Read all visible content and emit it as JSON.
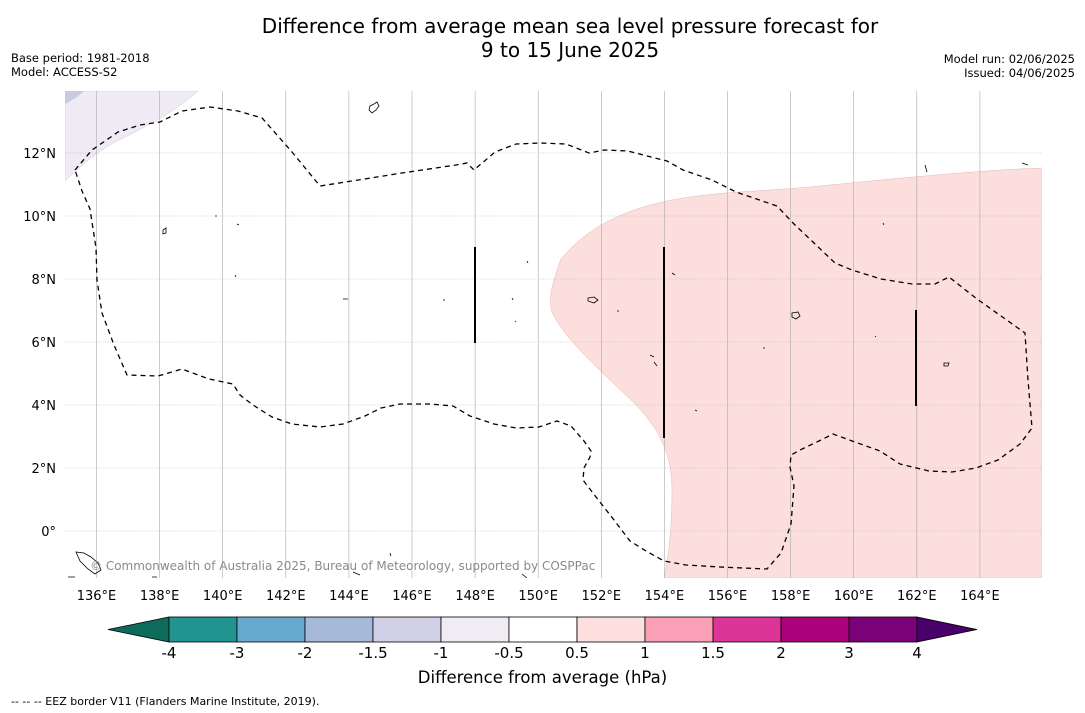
{
  "header": {
    "title_line1": "Difference from average mean sea level pressure forecast for",
    "title_line2": "9 to 15 June 2025",
    "base_period": "Base period: 1981-2018",
    "model": "Model: ACCESS-S2",
    "model_run": "Model run: 02/06/2025",
    "issued": "Issued: 04/06/2025"
  },
  "map": {
    "lon_ticks": [
      "136°E",
      "138°E",
      "140°E",
      "142°E",
      "144°E",
      "146°E",
      "148°E",
      "150°E",
      "152°E",
      "154°E",
      "156°E",
      "158°E",
      "160°E",
      "162°E",
      "164°E"
    ],
    "lat_ticks": [
      "12°N",
      "10°N",
      "8°N",
      "6°N",
      "4°N",
      "2°N",
      "0°"
    ],
    "copyright": "© Commonwealth of Australia 2025, Bureau of Meteorology, supported by COSPPac",
    "positive_region_color": "#fcdedd",
    "negative_region_color": "#efeaf3",
    "grid_color": "#aaaaaa"
  },
  "colorbar": {
    "labels": [
      "-4",
      "-3",
      "-2",
      "-1.5",
      "-1",
      "-0.5",
      "0.5",
      "1",
      "1.5",
      "2",
      "3",
      "4"
    ],
    "colors": [
      "#0e6b5c",
      "#22948f",
      "#67a9cf",
      "#a7b9da",
      "#d0d1e6",
      "#f1ecf4",
      "#ffffff",
      "#fde0dd",
      "#fa9fb5",
      "#dd3497",
      "#ae017e",
      "#7a0177",
      "#49006a"
    ],
    "title": "Difference from average (hPa)"
  },
  "footer": {
    "legend_line": "--  --  -- EEZ border V11 (Flanders Marine Institute, 2019)."
  }
}
